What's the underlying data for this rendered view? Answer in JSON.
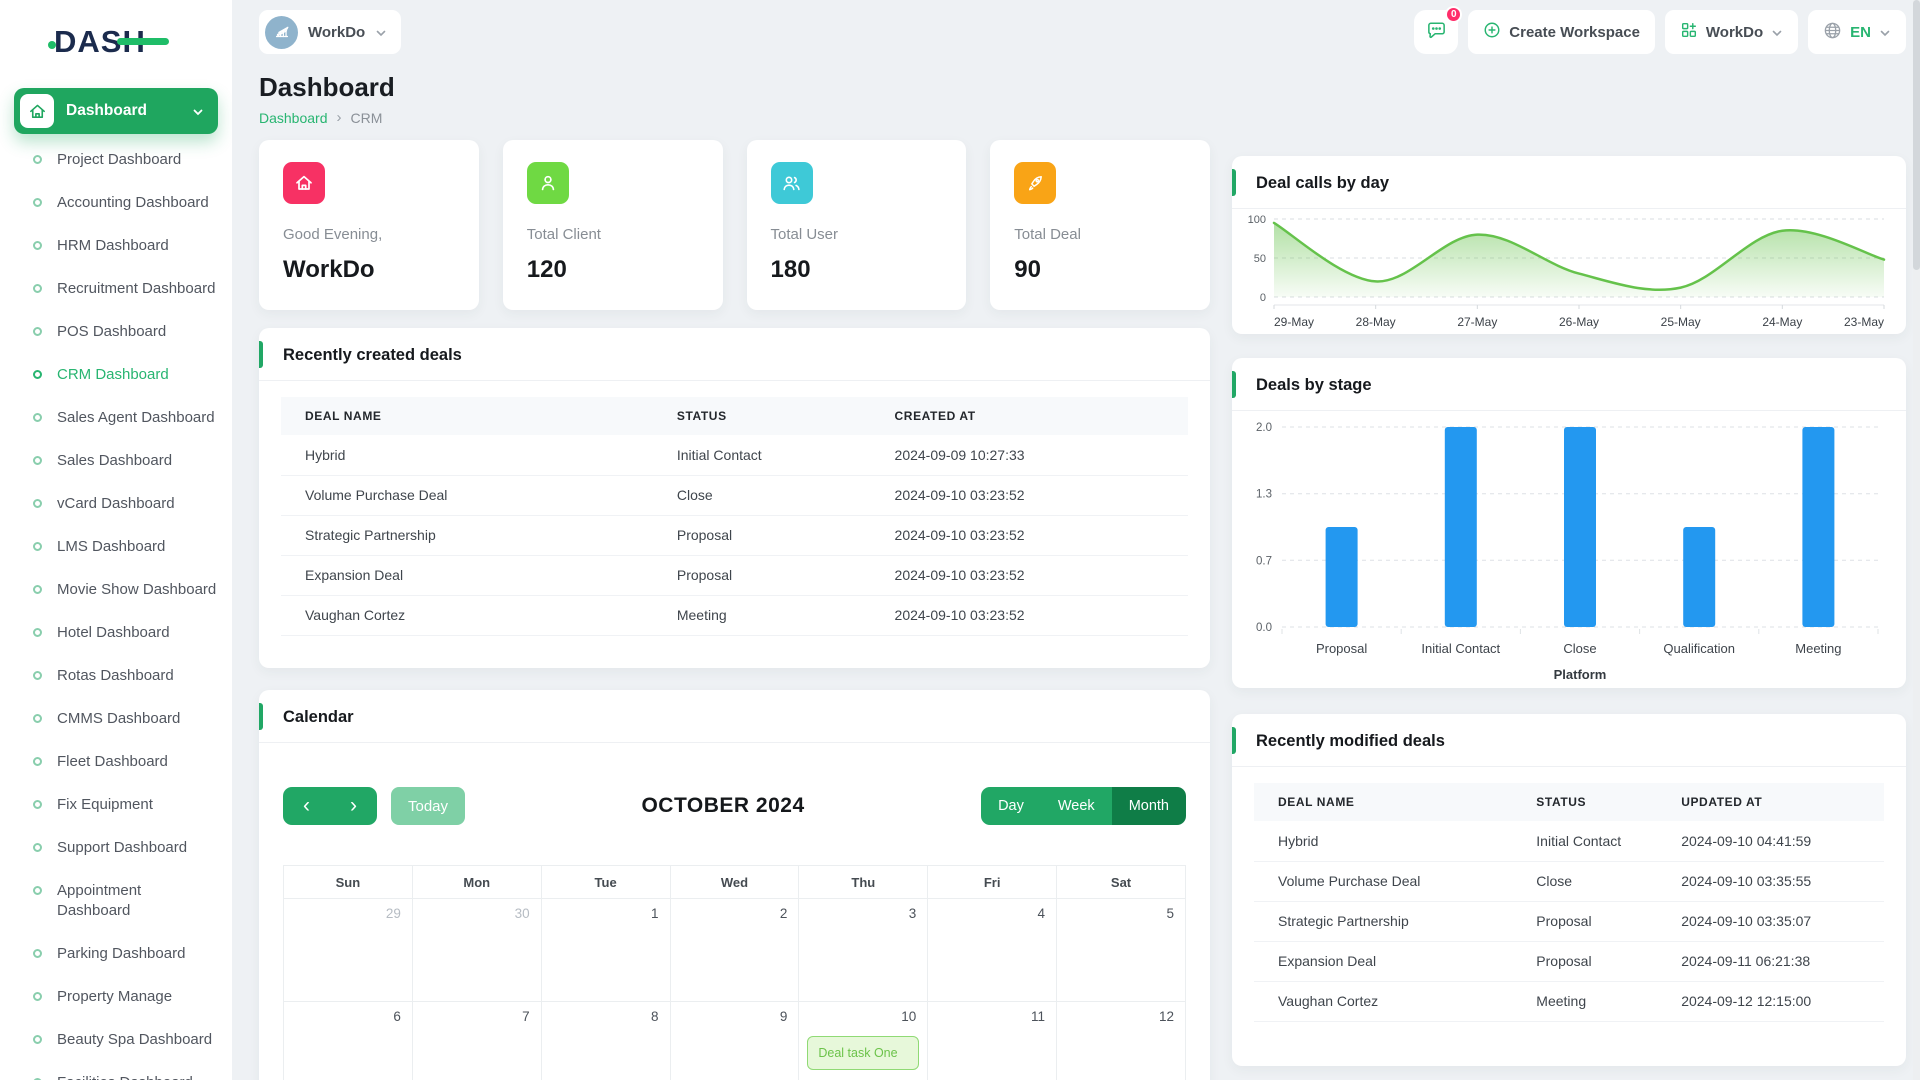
{
  "app": {
    "logo_text": "DASH"
  },
  "colors": {
    "primary_green": "#21a765",
    "dark_green": "#0f7d47",
    "light_green_btn": "#7fd0a6",
    "link_green": "#28b571",
    "chart_line_green": "#65c24b",
    "bar_blue": "#2398f0",
    "stat_pink": "#F73164",
    "stat_green": "#6FD943",
    "stat_cyan": "#3EC9D7",
    "stat_orange": "#F9A416",
    "badge_red": "#ff2d6a"
  },
  "header": {
    "workspace_pill": {
      "label": "WorkDo",
      "avatar_icon": "building-icon"
    },
    "messages": {
      "icon": "chat-icon",
      "badge": "0"
    },
    "create_workspace": {
      "icon": "plus-circle-icon",
      "label": "Create Workspace"
    },
    "workspace_menu": {
      "icon": "grid-icon",
      "label": "WorkDo"
    },
    "language_menu": {
      "icon": "globe-icon",
      "label": "EN"
    }
  },
  "sidebar": {
    "main_label": "Dashboard",
    "main_icon": "home-icon",
    "items": [
      {
        "label": "Project Dashboard"
      },
      {
        "label": "Accounting Dashboard"
      },
      {
        "label": "HRM Dashboard"
      },
      {
        "label": "Recruitment Dashboard"
      },
      {
        "label": "POS Dashboard"
      },
      {
        "label": "CRM Dashboard",
        "active": true
      },
      {
        "label": "Sales Agent Dashboard"
      },
      {
        "label": "Sales Dashboard"
      },
      {
        "label": "vCard Dashboard"
      },
      {
        "label": "LMS Dashboard"
      },
      {
        "label": "Movie Show Dashboard"
      },
      {
        "label": "Hotel Dashboard"
      },
      {
        "label": "Rotas Dashboard"
      },
      {
        "label": "CMMS Dashboard"
      },
      {
        "label": "Fleet Dashboard"
      },
      {
        "label": "Fix Equipment"
      },
      {
        "label": "Support Dashboard"
      },
      {
        "label": "Appointment Dashboard"
      },
      {
        "label": "Parking Dashboard"
      },
      {
        "label": "Property Manage"
      },
      {
        "label": "Beauty Spa Dashboard"
      },
      {
        "label": "Facilities Dashboard"
      }
    ]
  },
  "page": {
    "title": "Dashboard",
    "breadcrumb": [
      "Dashboard",
      "CRM"
    ]
  },
  "stats": [
    {
      "label": "Good Evening,",
      "value": "WorkDo",
      "icon": "home-icon",
      "color": "#F73164"
    },
    {
      "label": "Total Client",
      "value": "120",
      "icon": "user-icon",
      "color": "#6FD943"
    },
    {
      "label": "Total User",
      "value": "180",
      "icon": "users-icon",
      "color": "#3EC9D7"
    },
    {
      "label": "Total Deal",
      "value": "90",
      "icon": "rocket-icon",
      "color": "#F9A416"
    }
  ],
  "created_deals": {
    "title": "Recently created deals",
    "columns": [
      "DEAL NAME",
      "STATUS",
      "CREATED AT"
    ],
    "rows": [
      [
        "Hybrid",
        "Initial Contact",
        "2024-09-09 10:27:33"
      ],
      [
        "Volume Purchase Deal",
        "Close",
        "2024-09-10 03:23:52"
      ],
      [
        "Strategic Partnership",
        "Proposal",
        "2024-09-10 03:23:52"
      ],
      [
        "Expansion Deal",
        "Proposal",
        "2024-09-10 03:23:52"
      ],
      [
        "Vaughan Cortez",
        "Meeting",
        "2024-09-10 03:23:52"
      ]
    ]
  },
  "modified_deals": {
    "title": "Recently modified deals",
    "columns": [
      "DEAL NAME",
      "STATUS",
      "UPDATED AT"
    ],
    "rows": [
      [
        "Hybrid",
        "Initial Contact",
        "2024-09-10 04:41:59"
      ],
      [
        "Volume Purchase Deal",
        "Close",
        "2024-09-10 03:35:55"
      ],
      [
        "Strategic Partnership",
        "Proposal",
        "2024-09-10 03:35:07"
      ],
      [
        "Expansion Deal",
        "Proposal",
        "2024-09-11 06:21:38"
      ],
      [
        "Vaughan Cortez",
        "Meeting",
        "2024-09-12 12:15:00"
      ]
    ]
  },
  "calendar": {
    "title": "Calendar",
    "month_label": "OCTOBER 2024",
    "today_label": "Today",
    "views": [
      "Day",
      "Week",
      "Month"
    ],
    "active_view": "Month",
    "weekdays": [
      "Sun",
      "Mon",
      "Tue",
      "Wed",
      "Thu",
      "Fri",
      "Sat"
    ],
    "weeks": [
      [
        {
          "day": "29",
          "muted": true
        },
        {
          "day": "30",
          "muted": true
        },
        {
          "day": "1"
        },
        {
          "day": "2"
        },
        {
          "day": "3"
        },
        {
          "day": "4"
        },
        {
          "day": "5"
        }
      ],
      [
        {
          "day": "6"
        },
        {
          "day": "7"
        },
        {
          "day": "8"
        },
        {
          "day": "9"
        },
        {
          "day": "10",
          "event": "Deal task One"
        },
        {
          "day": "11"
        },
        {
          "day": "12"
        }
      ]
    ]
  },
  "chart_data": [
    {
      "type": "area",
      "title": "Deal calls by day",
      "x": [
        "29-May",
        "28-May",
        "27-May",
        "26-May",
        "25-May",
        "24-May",
        "23-May"
      ],
      "values": [
        95,
        20,
        80,
        30,
        12,
        85,
        48
      ],
      "ylim": [
        0,
        100
      ],
      "yticks": [
        100,
        50,
        0
      ],
      "grid": "dashed",
      "legend": "none",
      "line_color": "#65c24b"
    },
    {
      "type": "bar",
      "title": "Deals by stage",
      "categories": [
        "Proposal",
        "Initial Contact",
        "Close",
        "Qualification",
        "Meeting"
      ],
      "values": [
        1,
        2,
        2,
        1,
        2
      ],
      "ylim": [
        0,
        2
      ],
      "yticks": [
        2,
        1.333,
        0.667,
        0
      ],
      "ytick_labels": [
        "2.0",
        "1.3",
        "0.7",
        "0.0"
      ],
      "xlabel": "Platform",
      "grid": "dashed",
      "legend": "none",
      "bar_color": "#2398f0"
    }
  ]
}
